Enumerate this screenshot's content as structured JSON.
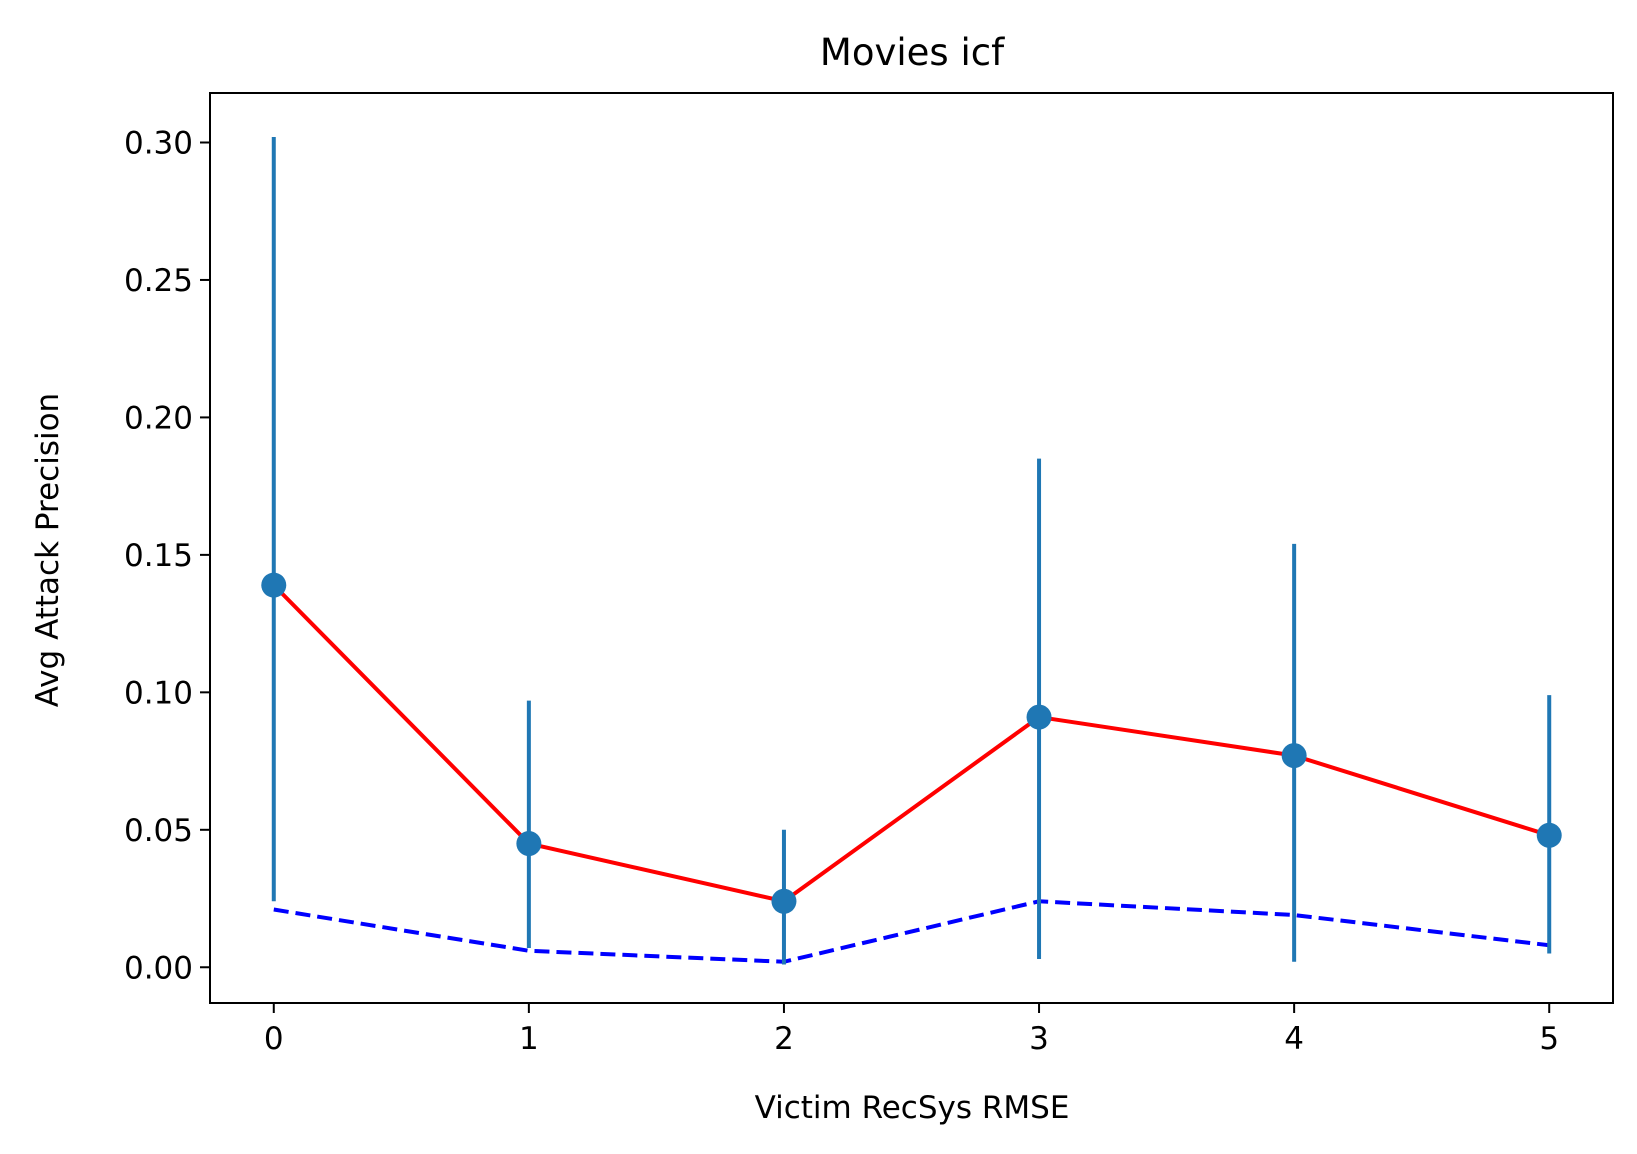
{
  "chart_data": {
    "type": "line",
    "title": "Movies icf",
    "xlabel": "Victim RecSys RMSE",
    "ylabel": "Avg Attack Precision",
    "x": [
      0,
      1,
      2,
      3,
      4,
      5
    ],
    "xlim": [
      -0.25,
      5.25
    ],
    "ylim": [
      -0.013,
      0.318
    ],
    "xticks": [
      0,
      1,
      2,
      3,
      4,
      5
    ],
    "xtick_labels": [
      "0",
      "1",
      "2",
      "3",
      "4",
      "5"
    ],
    "yticks": [
      0.0,
      0.05,
      0.1,
      0.15,
      0.2,
      0.25,
      0.3
    ],
    "ytick_labels": [
      "0.00",
      "0.05",
      "0.10",
      "0.15",
      "0.20",
      "0.25",
      "0.30"
    ],
    "grid": false,
    "series": [
      {
        "style": "solid",
        "color": "#ff0000",
        "values": [
          0.139,
          0.045,
          0.024,
          0.091,
          0.077,
          0.048
        ]
      },
      {
        "style": "markers-errorbars",
        "color": "#1f77b4",
        "values": [
          0.139,
          0.045,
          0.024,
          0.091,
          0.077,
          0.048
        ],
        "err_low": [
          0.024,
          0.007,
          0.001,
          0.003,
          0.002,
          0.005
        ],
        "err_high": [
          0.302,
          0.097,
          0.05,
          0.185,
          0.154,
          0.099
        ]
      },
      {
        "style": "dashed",
        "color": "#0000ff",
        "values": [
          0.021,
          0.006,
          0.002,
          0.024,
          0.019,
          0.008
        ]
      }
    ]
  }
}
